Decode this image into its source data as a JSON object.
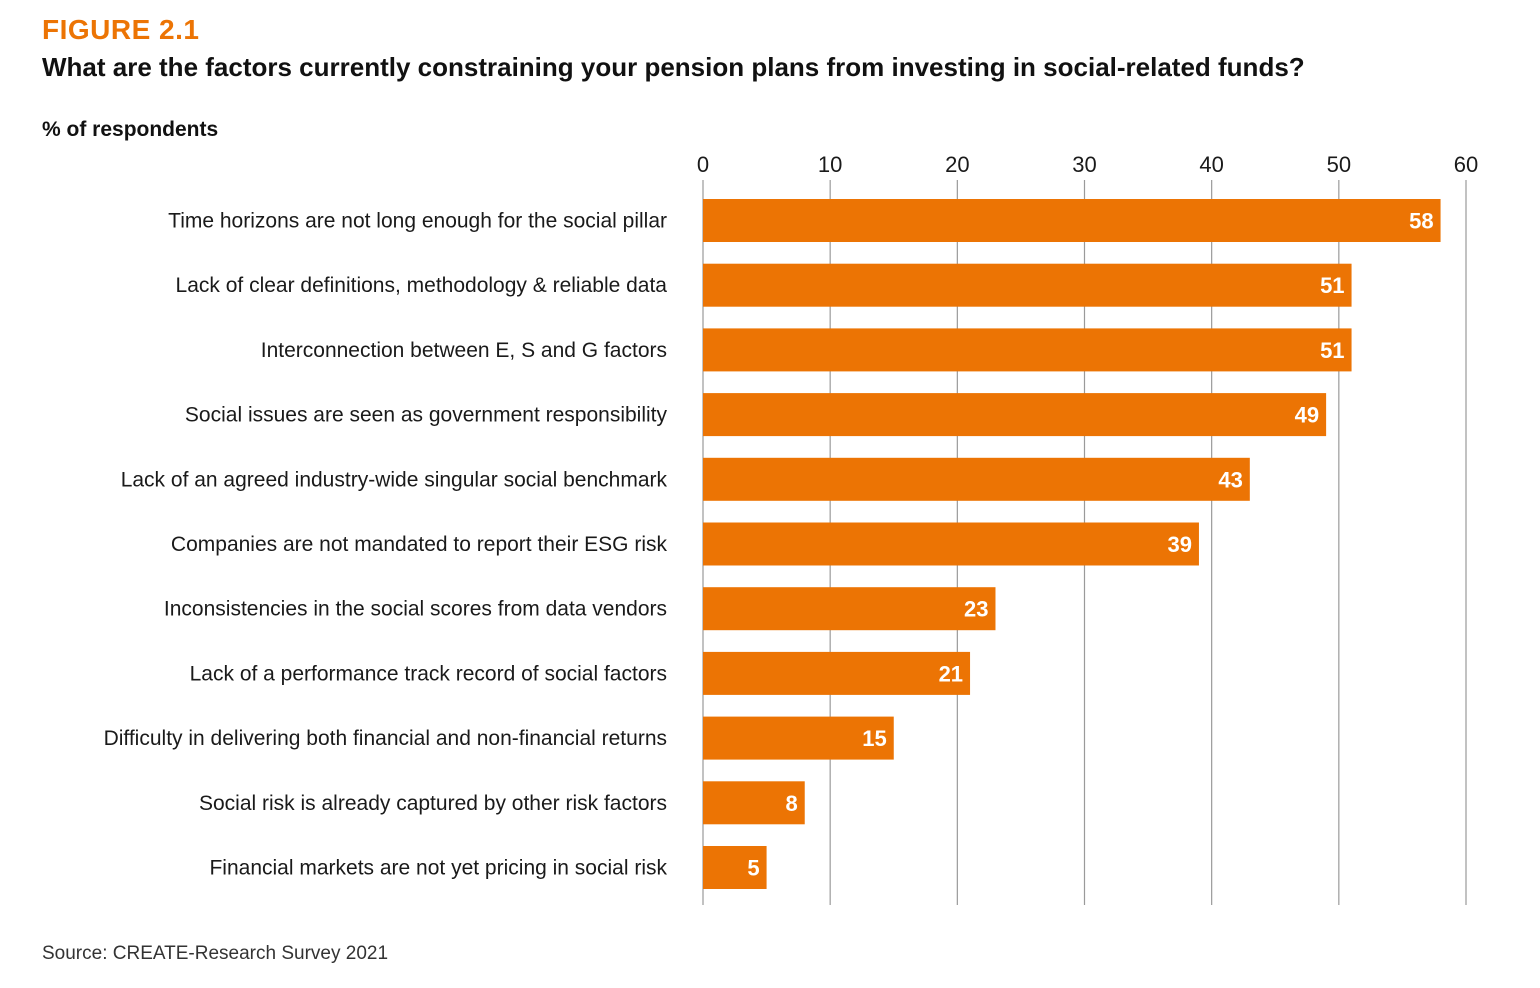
{
  "figure_label": "FIGURE 2.1",
  "title": "What are the factors currently constraining your pension plans from investing in social-related funds?",
  "unit_label": "% of respondents",
  "source": "Source: CREATE-Research Survey 2021",
  "colors": {
    "bar": "#ec7404",
    "accent": "#ec7404",
    "gridline": "#9a9a9a",
    "bar_label": "#ffffff",
    "text": "#1a1a1a"
  },
  "chart_data": {
    "type": "bar",
    "orientation": "horizontal",
    "title": "What are the factors currently constraining your pension plans from investing in social-related funds?",
    "xlabel": "% of respondents",
    "ylabel": "",
    "xlim": [
      0,
      60
    ],
    "ticks": [
      0,
      10,
      20,
      30,
      40,
      50,
      60
    ],
    "grid": true,
    "legend": "none",
    "categories": [
      "Time horizons are not long enough for the social pillar",
      "Lack of clear definitions, methodology & reliable data",
      "Interconnection between E, S and G factors",
      "Social issues are seen as government responsibility",
      "Lack of an agreed industry-wide singular social benchmark",
      "Companies are not mandated to report their ESG risk",
      "Inconsistencies in the social scores from data vendors",
      "Lack of a performance track record of social factors",
      "Difficulty in delivering both financial and non-financial returns",
      "Social risk is already captured by other risk factors",
      "Financial markets are not yet pricing in social risk"
    ],
    "values": [
      58,
      51,
      51,
      49,
      43,
      39,
      23,
      21,
      15,
      8,
      5
    ]
  }
}
